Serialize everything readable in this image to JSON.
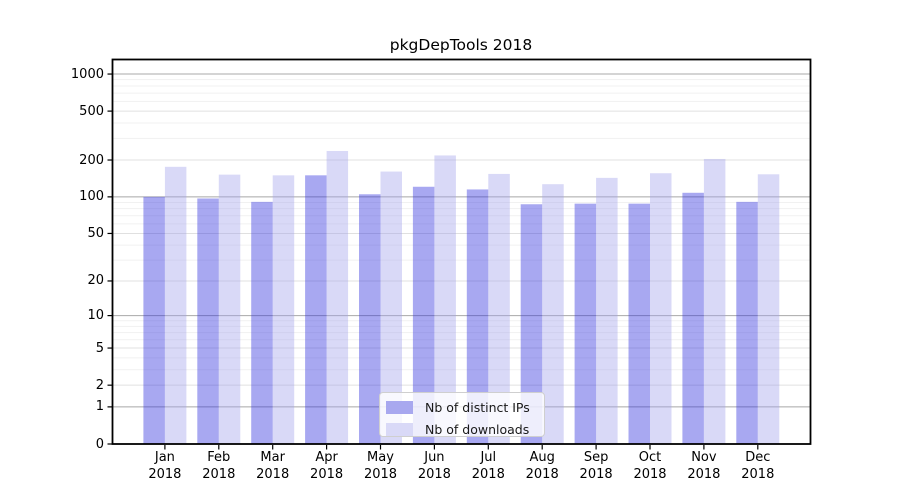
{
  "title": "pkgDepTools 2018",
  "year_label": "2018",
  "legend": {
    "position": "inside lower center",
    "items": [
      {
        "label": "Nb of distinct IPs",
        "series": "ips"
      },
      {
        "label": "Nb of downloads",
        "series": "downloads"
      }
    ]
  },
  "colors": {
    "ips_bar": "rgba(47,47,222,0.42)",
    "downloads_bar": "rgba(160,160,235,0.40)",
    "ips_bar_solid": "#a8a8ef",
    "downloads_bar_solid": "#d9d9f7",
    "grid_decade": "#a8a8a8",
    "grid_labeled": "#e0e0e0",
    "grid_minor": "#f1f1f1",
    "axis": "#000000",
    "background": "#ffffff"
  },
  "chart_data": {
    "type": "bar",
    "title": "pkgDepTools 2018",
    "categories": [
      "Jan 2018",
      "Feb 2018",
      "Mar 2018",
      "Apr 2018",
      "May 2018",
      "Jun 2018",
      "Jul 2018",
      "Aug 2018",
      "Sep 2018",
      "Oct 2018",
      "Nov 2018",
      "Dec 2018"
    ],
    "months": [
      "Jan",
      "Feb",
      "Mar",
      "Apr",
      "May",
      "Jun",
      "Jul",
      "Aug",
      "Sep",
      "Oct",
      "Nov",
      "Dec"
    ],
    "series": [
      {
        "name": "Nb of distinct IPs",
        "values": [
          100,
          97,
          91,
          150,
          105,
          121,
          115,
          87,
          88,
          88,
          108,
          91
        ]
      },
      {
        "name": "Nb of downloads",
        "values": [
          176,
          152,
          150,
          237,
          161,
          218,
          154,
          127,
          143,
          156,
          204,
          153
        ]
      }
    ],
    "xlabel": "",
    "ylabel": "",
    "y_ticks": [
      0,
      1,
      2,
      5,
      10,
      20,
      50,
      100,
      200,
      500,
      1000
    ],
    "y_scale": "log1p",
    "ylim": [
      0,
      1325
    ],
    "grid": "on",
    "legend_position": "inside lower center"
  }
}
